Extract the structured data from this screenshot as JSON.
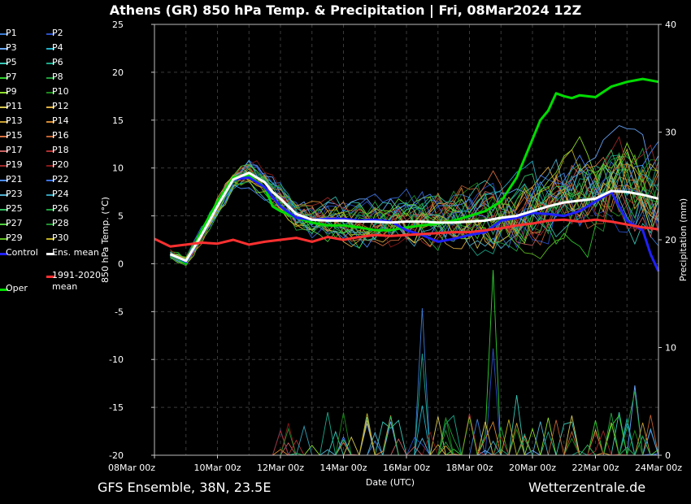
{
  "title": "Athens  (GR)  850 hPa Temp. & Precipitation | Fri, 08Mar2024 12Z",
  "footer": {
    "left": "GFS Ensemble, 38N, 23.5E",
    "right": "Wetterzentrale.de"
  },
  "chart_data": {
    "type": "line",
    "xlabel": "Date (UTC)",
    "ylabel": "850 hPa Temp. (°C)",
    "y2label": "Precipitation (mm)",
    "ylim": [
      -20,
      25
    ],
    "y2lim": [
      0,
      40
    ],
    "yticks": [
      -20,
      -15,
      -10,
      -5,
      0,
      5,
      10,
      15,
      20,
      25
    ],
    "y2ticks": [
      0,
      10,
      20,
      30,
      40
    ],
    "xlim_hours": [
      0,
      384
    ],
    "xticks": [
      {
        "hour": 0,
        "label": "08Mar 00z"
      },
      {
        "hour": 48,
        "label": "10Mar 00z"
      },
      {
        "hour": 96,
        "label": "12Mar 00z"
      },
      {
        "hour": 144,
        "label": "14Mar 00z"
      },
      {
        "hour": 192,
        "label": "16Mar 00z"
      },
      {
        "hour": 240,
        "label": "18Mar 00z"
      },
      {
        "hour": 288,
        "label": "20Mar 00z"
      },
      {
        "hour": 336,
        "label": "22Mar 00z"
      },
      {
        "hour": 384,
        "label": "24Mar 00z"
      }
    ],
    "grid": true,
    "legend_position": "left",
    "series": [
      {
        "name": "Oper",
        "color": "#00dd00",
        "bold": true,
        "hours": [
          12,
          18,
          24,
          36,
          48,
          60,
          72,
          84,
          90,
          96,
          108,
          120,
          132,
          144,
          156,
          168,
          180,
          192,
          204,
          216,
          228,
          240,
          252,
          264,
          276,
          288,
          294,
          300,
          306,
          312,
          318,
          324,
          336,
          348,
          360,
          372,
          384
        ],
        "values": [
          1.0,
          0.5,
          0.0,
          3.5,
          6.5,
          9.0,
          9.2,
          8.0,
          6.0,
          5.5,
          4.8,
          4.3,
          4.0,
          4.0,
          3.8,
          3.5,
          3.5,
          3.8,
          4.0,
          4.2,
          4.5,
          5.0,
          5.5,
          6.5,
          9.0,
          13.0,
          15.0,
          16.0,
          17.8,
          17.5,
          17.3,
          17.6,
          17.4,
          18.5,
          19.0,
          19.3,
          19.0
        ]
      },
      {
        "name": "Control",
        "color": "#2020ff",
        "bold": true,
        "hours": [
          12,
          24,
          36,
          48,
          60,
          72,
          84,
          96,
          108,
          120,
          132,
          144,
          156,
          168,
          180,
          192,
          204,
          216,
          228,
          240,
          252,
          264,
          276,
          288,
          300,
          312,
          324,
          336,
          348,
          360,
          366,
          372,
          378,
          384
        ],
        "values": [
          1.0,
          0.2,
          3.0,
          6.0,
          8.8,
          9.0,
          8.0,
          6.0,
          4.8,
          4.6,
          4.7,
          4.7,
          4.5,
          4.6,
          4.4,
          3.5,
          3.0,
          2.3,
          2.6,
          3.0,
          3.3,
          4.5,
          4.8,
          5.3,
          5.2,
          5.0,
          5.5,
          6.5,
          7.5,
          4.5,
          4.0,
          3.5,
          1.0,
          -0.8
        ]
      },
      {
        "name": "Ens. mean",
        "color": "#ffffff",
        "bold": true,
        "hours": [
          12,
          24,
          36,
          48,
          60,
          72,
          84,
          90,
          96,
          108,
          120,
          132,
          144,
          156,
          168,
          180,
          192,
          204,
          216,
          228,
          240,
          252,
          264,
          276,
          288,
          300,
          312,
          324,
          336,
          348,
          360,
          372,
          384
        ],
        "values": [
          1.0,
          0.3,
          3.0,
          6.0,
          8.8,
          9.5,
          8.5,
          7.5,
          6.8,
          5.2,
          4.6,
          4.5,
          4.5,
          4.4,
          4.4,
          4.3,
          4.4,
          4.4,
          4.3,
          4.3,
          4.4,
          4.5,
          4.8,
          5.0,
          5.5,
          6.0,
          6.4,
          6.6,
          6.8,
          7.6,
          7.5,
          7.2,
          6.8
        ]
      },
      {
        "name": "1991-2020 mean",
        "color": "#ff3030",
        "bold": true,
        "hours": [
          0,
          12,
          24,
          36,
          48,
          60,
          72,
          84,
          96,
          108,
          120,
          132,
          144,
          156,
          168,
          180,
          192,
          204,
          216,
          228,
          240,
          252,
          264,
          276,
          288,
          300,
          312,
          324,
          336,
          348,
          360,
          372,
          384
        ],
        "values": [
          2.6,
          1.8,
          2.0,
          2.2,
          2.1,
          2.5,
          2.0,
          2.3,
          2.5,
          2.7,
          2.3,
          2.8,
          2.5,
          2.8,
          3.0,
          2.9,
          3.0,
          3.1,
          3.2,
          3.3,
          3.3,
          3.5,
          3.7,
          4.0,
          4.2,
          4.5,
          4.6,
          4.4,
          4.6,
          4.4,
          4.1,
          3.8,
          3.6
        ]
      }
    ],
    "members": [
      "P1",
      "P2",
      "P3",
      "P4",
      "P5",
      "P6",
      "P7",
      "P8",
      "P9",
      "P10",
      "P11",
      "P12",
      "P13",
      "P14",
      "P15",
      "P16",
      "P17",
      "P18",
      "P19",
      "P20",
      "P21",
      "P22",
      "P23",
      "P24",
      "P25",
      "P26",
      "P27",
      "P28",
      "P29",
      "P30"
    ],
    "member_colors": [
      "#3a7bd5",
      "#2a4fc8",
      "#6aa9ff",
      "#1fb0c8",
      "#38c8b8",
      "#1aa88a",
      "#2ed02e",
      "#1f9f3a",
      "#8ee02a",
      "#1a8a1a",
      "#d8c850",
      "#e0b040",
      "#c8a030",
      "#d88a30",
      "#d87040",
      "#c06030",
      "#c86060",
      "#b03030",
      "#a02828",
      "#8a1818",
      "#4a8aff",
      "#3a70e0",
      "#50b0d0",
      "#30a0b8",
      "#30c060",
      "#20a040",
      "#50d040",
      "#209030",
      "#60c020",
      "#c0b020"
    ],
    "precip_peaks": [
      {
        "hour": 204,
        "value": 14.0
      },
      {
        "hour": 258,
        "value": 18.0
      },
      {
        "hour": 366,
        "value": 7.5
      },
      {
        "hour": 204,
        "value": 5.0
      },
      {
        "hour": 276,
        "value": 6.0
      }
    ]
  }
}
